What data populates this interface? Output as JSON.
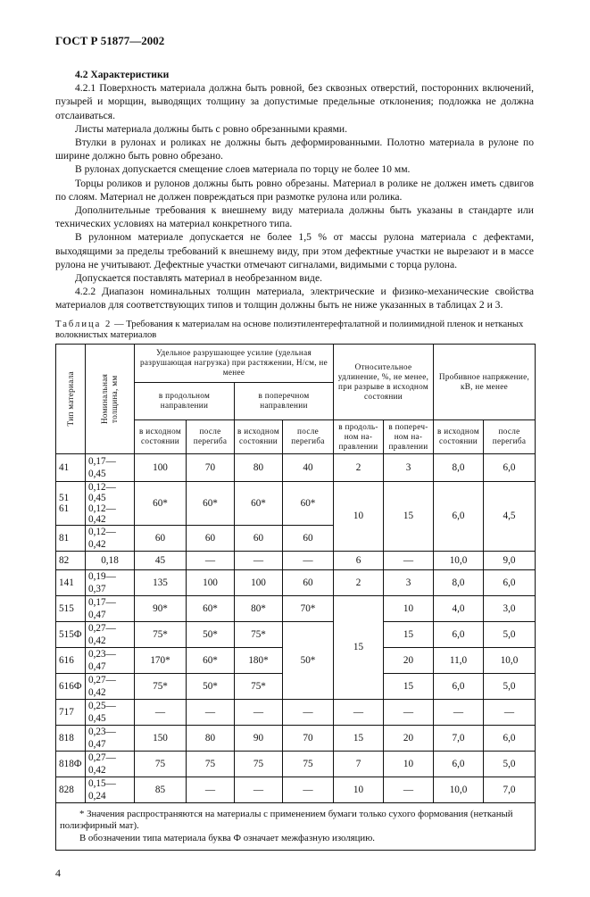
{
  "header": "ГОСТ Р 51877—2002",
  "section_title": "4.2 Характеристики",
  "paragraphs": [
    "4.2.1 Поверхность материала должна быть ровной, без сквозных отверстий, посторонних включений, пузырей и морщин, выводящих толщину за допустимые предельные отклонения; подложка не должна отслаиваться.",
    "Листы материала должны быть с ровно обрезанными краями.",
    "Втулки в рулонах и роликах не должны быть деформированными. Полотно материала в рулоне по ширине должно быть ровно обрезано.",
    "В рулонах допускается смещение слоев материала по торцу не более 10 мм.",
    "Торцы роликов и рулонов должны быть ровно обрезаны. Материал в ролике не должен иметь сдвигов по слоям. Материал не должен повреждаться при размотке рулона или ролика.",
    "Дополнительные требования к внешнему виду материала должны быть указаны в стандарте или технических условиях на материал конкретного типа.",
    "В рулонном материале допускается не более 1,5 % от массы рулона материала с дефектами, выходящими за пределы требований к внешнему виду, при этом дефектные участки не вырезают и в массе рулона не учитывают. Дефектные участки отмечают сигналами, видимыми с торца рулона.",
    "Допускается поставлять материал в необрезанном виде.",
    "4.2.2 Диапазон номинальных толщин материала, электрические и физико-механические свойства материалов для соответствующих типов и толщин должны быть не ниже указанных в таблицах 2 и 3."
  ],
  "table": {
    "caption_label": "Таблица 2",
    "caption_text": " — Требования к материалам на основе полиэтилентерефталатной и полиимидной пленок и нетканых волокнистых материалов",
    "h_type": "Тип материала",
    "h_thickness": "Номинальная толщина, мм",
    "h_strength": "Удельное разрушающее усилие (удельная разрушающая нагрузка) при растяжении, Н/см, не менее",
    "h_long": "в продольном направлении",
    "h_trans": "в поперечном направлении",
    "h_elong": "Относительное удлинение, %, не менее, при разрыве в исходном состоянии",
    "h_voltage": "Пробивное напряжение, кВ, не менее",
    "h_init": "в исходном состоянии",
    "h_after": "после перегиба",
    "h_long2": "в продоль-ном на-правлении",
    "h_trans2": "в попереч-ном на-правлении",
    "rows": [
      [
        "41",
        "0,17—0,45",
        "100",
        "70",
        "80",
        "40",
        "2",
        "3",
        "8,0",
        "6,0"
      ],
      [
        "51\n61",
        "0,12—0,45\n0,12—0,42",
        "60*",
        "60*",
        "60*",
        "60*",
        "10",
        "15",
        "6,0",
        "4,5"
      ],
      [
        "81",
        "0,12—0,42",
        "60",
        "60",
        "60",
        "60"
      ],
      [
        "82",
        "0,18",
        "45",
        "—",
        "—",
        "—",
        "6",
        "—",
        "10,0",
        "9,0"
      ],
      [
        "141",
        "0,19—0,37",
        "135",
        "100",
        "100",
        "60",
        "2",
        "3",
        "8,0",
        "6,0"
      ],
      [
        "515",
        "0,17—0,47",
        "90*",
        "60*",
        "80*",
        "70*",
        "15",
        "10",
        "4,0",
        "3,0"
      ],
      [
        "515Ф",
        "0,27—0,42",
        "75*",
        "50*",
        "75*",
        "50*",
        "15",
        "6,0",
        "5,0"
      ],
      [
        "616",
        "0,23—0,47",
        "170*",
        "60*",
        "180*",
        "20",
        "11,0",
        "10,0"
      ],
      [
        "616Ф",
        "0,27—0,42",
        "75*",
        "50*",
        "75*",
        "15",
        "6,0",
        "5,0"
      ],
      [
        "717",
        "0,25—0,45",
        "—",
        "—",
        "—",
        "—",
        "—",
        "—",
        "—",
        "—"
      ],
      [
        "818",
        "0,23—0,47",
        "150",
        "80",
        "90",
        "70",
        "15",
        "20",
        "7,0",
        "6,0"
      ],
      [
        "818Ф",
        "0,27—0,42",
        "75",
        "75",
        "75",
        "75",
        "7",
        "10",
        "6,0",
        "5,0"
      ],
      [
        "828",
        "0,15—0,24",
        "85",
        "—",
        "—",
        "—",
        "10",
        "—",
        "10,0",
        "7,0"
      ]
    ],
    "footnote1": "* Значения распространяются на материалы с применением бумаги только сухого формования (нетканый полиэфирный мат).",
    "footnote2": "В обозначении типа материала буква Ф означает межфазную изоляцию."
  },
  "page_number": "4"
}
